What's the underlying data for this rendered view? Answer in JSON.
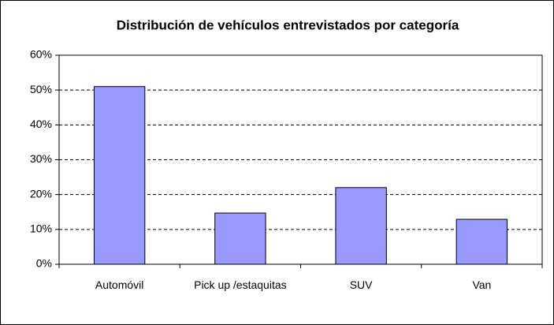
{
  "chart_data": {
    "type": "bar",
    "title": "Distribución de vehículos entrevistados por categoría",
    "categories": [
      "Automóvil",
      "Pick up /estaquitas",
      "SUV",
      "Van"
    ],
    "values": [
      51,
      14.7,
      22,
      12.9
    ],
    "color": "#9999ff",
    "ylim": [
      0,
      60
    ],
    "yticks": [
      {
        "value": 0,
        "label": "0%"
      },
      {
        "value": 10,
        "label": "10%"
      },
      {
        "value": 20,
        "label": "20%"
      },
      {
        "value": 30,
        "label": "30%"
      },
      {
        "value": 40,
        "label": "40%"
      },
      {
        "value": 50,
        "label": "50%"
      },
      {
        "value": 60,
        "label": "60%"
      }
    ],
    "grid": true
  }
}
